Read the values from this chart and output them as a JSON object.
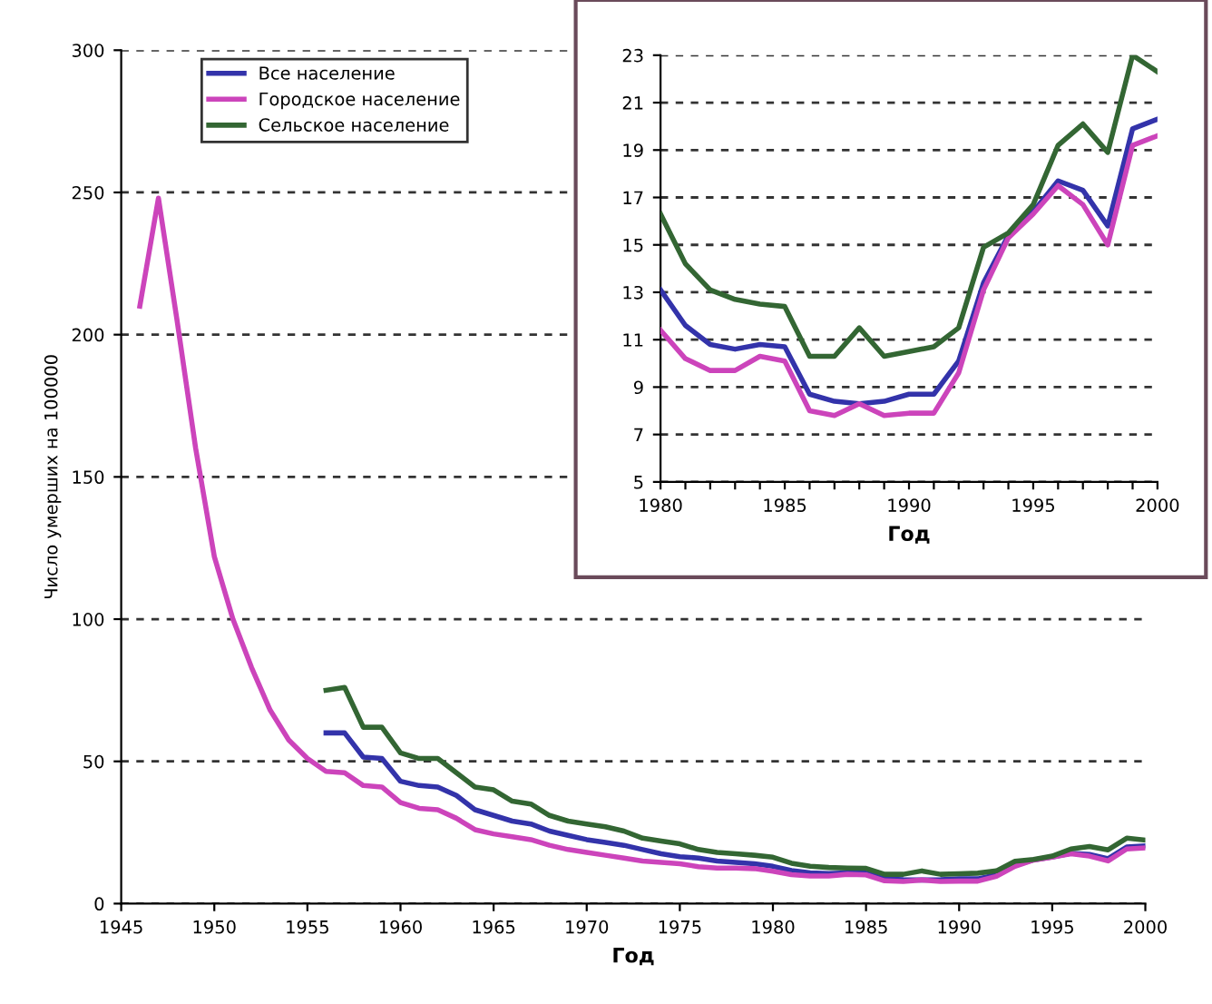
{
  "chart_data": [
    {
      "type": "line",
      "xlabel": "Год",
      "ylabel": "Число умерших на 100000",
      "xlim": [
        1945,
        2000
      ],
      "xticks": [
        1945,
        1950,
        1955,
        1960,
        1965,
        1970,
        1975,
        1980,
        1985,
        1990,
        1995,
        2000
      ],
      "ylim": [
        0,
        300
      ],
      "yticks": [
        0,
        50,
        100,
        150,
        200,
        250,
        300
      ],
      "grid": "y",
      "legend": "top left",
      "line_style": "solid",
      "series": [
        {
          "name": "Все население",
          "color": "#3333aa",
          "x": [
            1956,
            1957,
            1958,
            1959,
            1960,
            1961,
            1962,
            1963,
            1964,
            1965,
            1966,
            1967,
            1968,
            1969,
            1970,
            1971,
            1972,
            1973,
            1974,
            1975,
            1976,
            1977,
            1978,
            1979,
            1980,
            1981,
            1982,
            1983,
            1984,
            1985,
            1986,
            1987,
            1988,
            1989,
            1990,
            1991,
            1992,
            1993,
            1994,
            1995,
            1996,
            1997,
            1998,
            1999,
            2000
          ],
          "values": [
            60,
            60,
            51.5,
            51,
            43,
            41.5,
            41,
            38,
            33,
            31,
            29,
            28,
            25.5,
            24,
            22.5,
            21.5,
            20.5,
            19,
            17.5,
            16.5,
            16,
            15,
            14.5,
            14,
            13.1,
            11.6,
            10.8,
            10.6,
            10.8,
            10.7,
            8.7,
            8.4,
            8.3,
            8.4,
            8.7,
            8.7,
            10.1,
            13.4,
            15.4,
            16.4,
            17.7,
            17.3,
            15.8,
            19.9,
            20.3
          ]
        },
        {
          "name": "Городское население",
          "color": "#cc44bb",
          "x": [
            1946,
            1947,
            1948,
            1949,
            1950,
            1951,
            1952,
            1953,
            1954,
            1955,
            1956,
            1957,
            1958,
            1959,
            1960,
            1961,
            1962,
            1963,
            1964,
            1965,
            1966,
            1967,
            1968,
            1969,
            1970,
            1971,
            1972,
            1973,
            1974,
            1975,
            1976,
            1977,
            1978,
            1979,
            1980,
            1981,
            1982,
            1983,
            1984,
            1985,
            1986,
            1987,
            1988,
            1989,
            1990,
            1991,
            1992,
            1993,
            1994,
            1995,
            1996,
            1997,
            1998,
            1999,
            2000
          ],
          "values": [
            210,
            248,
            205,
            160,
            122,
            100,
            83,
            68,
            57.5,
            51,
            46.5,
            46,
            41.5,
            41,
            35.5,
            33.5,
            33,
            30,
            26,
            24.5,
            23.5,
            22.5,
            20.5,
            19,
            18,
            17,
            16,
            15,
            14.5,
            14,
            13,
            12.5,
            12.5,
            12.3,
            11.4,
            10.2,
            9.7,
            9.7,
            10.3,
            10.1,
            8,
            7.8,
            8.3,
            7.8,
            7.9,
            7.9,
            9.6,
            13.1,
            15.3,
            16.3,
            17.5,
            16.7,
            15,
            19.2,
            19.6
          ]
        },
        {
          "name": "Сельское население",
          "color": "#336633",
          "x": [
            1956,
            1957,
            1958,
            1959,
            1960,
            1961,
            1962,
            1963,
            1964,
            1965,
            1966,
            1967,
            1968,
            1969,
            1970,
            1971,
            1972,
            1973,
            1974,
            1975,
            1976,
            1977,
            1978,
            1979,
            1980,
            1981,
            1982,
            1983,
            1984,
            1985,
            1986,
            1987,
            1988,
            1989,
            1990,
            1991,
            1992,
            1993,
            1994,
            1995,
            1996,
            1997,
            1998,
            1999,
            2000
          ],
          "values": [
            75,
            76,
            62,
            62,
            53,
            51,
            51,
            46,
            41,
            40,
            36,
            35,
            31,
            29,
            28,
            27,
            25.5,
            23,
            22,
            21,
            19,
            18,
            17.5,
            17,
            16.3,
            14.2,
            13.1,
            12.7,
            12.5,
            12.4,
            10.3,
            10.3,
            11.5,
            10.3,
            10.5,
            10.7,
            11.5,
            14.9,
            15.5,
            16.7,
            19.2,
            20.1,
            18.9,
            23,
            22.3
          ]
        }
      ]
    },
    {
      "type": "line",
      "xlabel": "Год",
      "xlim": [
        1980,
        2000
      ],
      "xticks": [
        1980,
        {
          "value": 1981,
          "label": null
        },
        {
          "value": 1982,
          "label": null
        },
        {
          "value": 1983,
          "label": null
        },
        {
          "value": 1984,
          "label": null
        },
        1985,
        {
          "value": 1986,
          "label": null
        },
        {
          "value": 1987,
          "label": null
        },
        {
          "value": 1988,
          "label": null
        },
        {
          "value": 1989,
          "label": null
        },
        1990,
        {
          "value": 1991,
          "label": null
        },
        {
          "value": 1992,
          "label": null
        },
        {
          "value": 1993,
          "label": null
        },
        {
          "value": 1994,
          "label": null
        },
        1995,
        {
          "value": 1996,
          "label": null
        },
        {
          "value": 1997,
          "label": null
        },
        {
          "value": 1998,
          "label": null
        },
        {
          "value": 1999,
          "label": null
        },
        2000
      ],
      "ylim": [
        5,
        23
      ],
      "yticks": [
        5,
        7,
        9,
        11,
        13,
        15,
        17,
        19,
        21,
        23
      ],
      "grid": "y",
      "line_style": "solid",
      "series": [
        {
          "color": "#3333aa",
          "x": [
            1980,
            1981,
            1982,
            1983,
            1984,
            1985,
            1986,
            1987,
            1988,
            1989,
            1990,
            1991,
            1992,
            1993,
            1994,
            1995,
            1996,
            1997,
            1998,
            1999,
            2000
          ],
          "values": [
            13.1,
            11.6,
            10.8,
            10.6,
            10.8,
            10.7,
            8.7,
            8.4,
            8.3,
            8.4,
            8.7,
            8.7,
            10.1,
            13.4,
            15.4,
            16.4,
            17.7,
            17.3,
            15.8,
            19.9,
            20.3
          ]
        },
        {
          "color": "#cc44bb",
          "x": [
            1980,
            1981,
            1982,
            1983,
            1984,
            1985,
            1986,
            1987,
            1988,
            1989,
            1990,
            1991,
            1992,
            1993,
            1994,
            1995,
            1996,
            1997,
            1998,
            1999,
            2000
          ],
          "values": [
            11.4,
            10.2,
            9.7,
            9.7,
            10.3,
            10.1,
            8,
            7.8,
            8.3,
            7.8,
            7.9,
            7.9,
            9.6,
            13.1,
            15.3,
            16.3,
            17.5,
            16.7,
            15,
            19.2,
            19.6
          ]
        },
        {
          "color": "#336633",
          "x": [
            1980,
            1981,
            1982,
            1983,
            1984,
            1985,
            1986,
            1987,
            1988,
            1989,
            1990,
            1991,
            1992,
            1993,
            1994,
            1995,
            1996,
            1997,
            1998,
            1999,
            2000
          ],
          "values": [
            16.3,
            14.2,
            13.1,
            12.7,
            12.5,
            12.4,
            10.3,
            10.3,
            11.5,
            10.3,
            10.5,
            10.7,
            11.5,
            14.9,
            15.5,
            16.7,
            19.2,
            20.1,
            18.9,
            23,
            22.3
          ]
        }
      ]
    }
  ]
}
